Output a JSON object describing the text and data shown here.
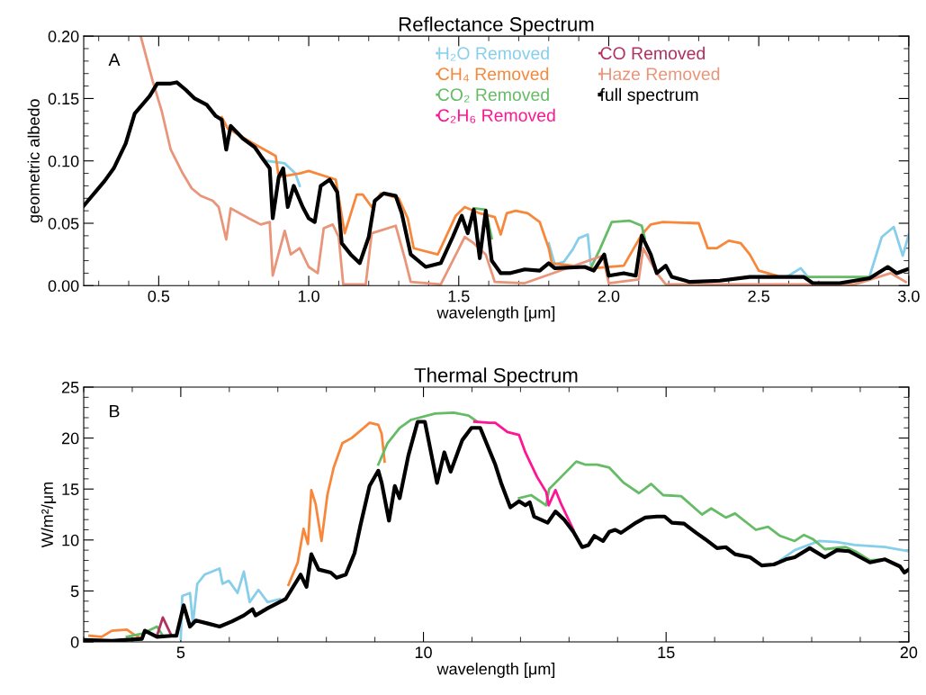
{
  "chart_data": [
    {
      "type": "line",
      "title": "Reflectance Spectrum",
      "xlabel": "wavelength [μm]",
      "ylabel": "geometric albedo",
      "annotations": [
        "A"
      ],
      "xlim": [
        0.25,
        3.0
      ],
      "ylim": [
        0,
        0.2
      ],
      "xticks": [
        {
          "value": 0.5,
          "label": "0.5"
        },
        {
          "value": 1.0,
          "label": "1.0"
        },
        {
          "value": 1.5,
          "label": "1.5"
        },
        {
          "value": 2.0,
          "label": "2.0"
        },
        {
          "value": 2.5,
          "label": "2.5"
        },
        {
          "value": 3.0,
          "label": "3.0"
        }
      ],
      "yticks": [
        {
          "value": 0,
          "label": "0.00"
        },
        {
          "value": 0.05,
          "label": "0.05"
        },
        {
          "value": 0.1,
          "label": "0.10"
        },
        {
          "value": 0.15,
          "label": "0.15"
        },
        {
          "value": 0.2,
          "label": "0.20"
        }
      ],
      "legend": "top",
      "grid": false,
      "series": [
        {
          "name": "H₂O Removed",
          "color": "#87ceeb",
          "x": [
            0.86,
            0.92,
            0.955,
            0.97,
            null,
            1.8,
            1.82,
            1.85,
            1.88,
            1.9,
            1.93,
            1.94,
            null,
            2.6,
            2.64,
            2.66,
            null,
            2.87,
            2.91,
            2.95,
            2.98,
            3.0
          ],
          "values": [
            0.1,
            0.098,
            0.09,
            0.08,
            null,
            0.034,
            0.017,
            0.019,
            0.029,
            0.038,
            0.041,
            0.017,
            null,
            0.008,
            0.014,
            0.008,
            null,
            0.008,
            0.039,
            0.047,
            0.024,
            0.041
          ]
        },
        {
          "name": "CH₄ Removed",
          "color": "#f7873a",
          "x": [
            0.71,
            0.73,
            0.8,
            0.89,
            0.9,
            0.97,
            1.0,
            1.09,
            1.12,
            1.16,
            1.18,
            1.21,
            1.24,
            1.3,
            1.33,
            1.35,
            1.43,
            1.44,
            1.49,
            1.52,
            1.57,
            1.62,
            1.64,
            1.66,
            1.69,
            1.73,
            1.77,
            1.8,
            1.81,
            1.92,
            1.95,
            2.05,
            2.11,
            2.14,
            2.18,
            2.3,
            2.33,
            2.36,
            2.4,
            2.44,
            2.47,
            2.5,
            2.56
          ],
          "values": [
            0.135,
            0.126,
            0.116,
            0.104,
            0.087,
            0.09,
            0.092,
            0.085,
            0.042,
            0.073,
            0.073,
            0.063,
            0.074,
            0.07,
            0.054,
            0.03,
            0.025,
            0.03,
            0.056,
            0.063,
            0.058,
            0.055,
            0.041,
            0.058,
            0.06,
            0.058,
            0.051,
            0.03,
            0.018,
            0.015,
            0.014,
            0.016,
            0.041,
            0.049,
            0.051,
            0.05,
            0.03,
            0.03,
            0.036,
            0.034,
            0.025,
            0.012,
            0.008
          ]
        },
        {
          "name": "CO₂ Removed",
          "color": "#66bb66",
          "x": [
            1.55,
            1.59,
            1.61,
            null,
            1.94,
            1.97,
            2.01,
            2.07,
            2.11,
            2.12,
            null,
            2.66,
            2.87
          ],
          "values": [
            0.062,
            0.061,
            0.038,
            null,
            0.014,
            0.029,
            0.051,
            0.052,
            0.048,
            0.038,
            null,
            0.007,
            0.007
          ]
        },
        {
          "name": "Haze Removed",
          "color": "#e8957a",
          "x": [
            0.44,
            0.48,
            0.51,
            0.54,
            0.58,
            0.61,
            0.64,
            0.68,
            0.7,
            0.725,
            0.74,
            0.8,
            0.84,
            0.87,
            0.88,
            0.92,
            0.94,
            0.97,
            1.0,
            1.03,
            1.05,
            1.08,
            1.1,
            1.115,
            1.19,
            1.21,
            1.29,
            1.32,
            1.34,
            1.44,
            1.48,
            1.52,
            1.55,
            1.59,
            1.62,
            1.72,
            1.98,
            2.0,
            2.1,
            2.115,
            2.16,
            2.19,
            2.82,
            2.94,
            2.99
          ],
          "values": [
            0.2,
            0.164,
            0.14,
            0.109,
            0.09,
            0.078,
            0.072,
            0.068,
            0.063,
            0.037,
            0.062,
            0.054,
            0.049,
            0.051,
            0.008,
            0.044,
            0.025,
            0.03,
            0.015,
            0.01,
            0.046,
            0.049,
            0.039,
            0.001,
            0.001,
            0.042,
            0.048,
            0.022,
            0.003,
            0.001,
            0.02,
            0.039,
            0.034,
            0.025,
            0.003,
            0.002,
            0.024,
            0.002,
            0.005,
            0.03,
            0.01,
            0.001,
            0.001,
            0.01,
            0.003
          ]
        },
        {
          "name": "full spectrum",
          "color": "#000000",
          "x": [
            0.25,
            0.32,
            0.35,
            0.39,
            0.42,
            0.47,
            0.495,
            0.54,
            0.56,
            0.59,
            0.62,
            0.66,
            0.69,
            0.71,
            0.725,
            0.74,
            0.78,
            0.82,
            0.84,
            0.87,
            0.88,
            0.9,
            0.915,
            0.93,
            0.95,
            0.98,
            1.0,
            1.02,
            1.04,
            1.07,
            1.095,
            1.11,
            1.14,
            1.17,
            1.2,
            1.22,
            1.25,
            1.29,
            1.31,
            1.34,
            1.39,
            1.44,
            1.48,
            1.51,
            1.53,
            1.55,
            1.57,
            1.59,
            1.61,
            1.64,
            1.67,
            1.72,
            1.77,
            1.8,
            1.82,
            1.92,
            1.95,
            1.985,
            2.0,
            2.05,
            2.09,
            2.11,
            2.14,
            2.16,
            2.19,
            2.21,
            2.27,
            2.37,
            2.47,
            2.57,
            2.65,
            2.68,
            2.77,
            2.87,
            2.93,
            2.96,
            2.995
          ],
          "values": [
            0.064,
            0.084,
            0.094,
            0.114,
            0.138,
            0.152,
            0.162,
            0.162,
            0.163,
            0.157,
            0.15,
            0.145,
            0.136,
            0.133,
            0.109,
            0.128,
            0.118,
            0.111,
            0.104,
            0.094,
            0.054,
            0.087,
            0.094,
            0.063,
            0.08,
            0.063,
            0.054,
            0.051,
            0.08,
            0.085,
            0.075,
            0.034,
            0.025,
            0.018,
            0.039,
            0.068,
            0.074,
            0.072,
            0.058,
            0.025,
            0.015,
            0.018,
            0.039,
            0.056,
            0.042,
            0.061,
            0.022,
            0.06,
            0.02,
            0.01,
            0.01,
            0.013,
            0.012,
            0.018,
            0.014,
            0.015,
            0.012,
            0.025,
            0.008,
            0.01,
            0.008,
            0.04,
            0.025,
            0.01,
            0.016,
            0.007,
            0.003,
            0.004,
            0.007,
            0.007,
            0.007,
            0.002,
            0.002,
            0.006,
            0.015,
            0.01,
            0.013
          ]
        }
      ]
    },
    {
      "type": "line",
      "title": "Thermal Spectrum",
      "xlabel": "wavelength [μm]",
      "ylabel": "W/m²/μm",
      "annotations": [
        "B"
      ],
      "xlim": [
        3,
        20
      ],
      "ylim": [
        0,
        25
      ],
      "xticks": [
        5,
        10,
        15,
        20
      ],
      "yticks": [
        0,
        5,
        10,
        15,
        20,
        25
      ],
      "legend": "top",
      "grid": false,
      "series": [
        {
          "color": "#87ceeb",
          "x": [
            5.0,
            5.03,
            5.19,
            5.25,
            5.34,
            5.49,
            5.8,
            5.86,
            5.99,
            6.17,
            6.3,
            6.42,
            6.6,
            6.79,
            7.04,
            null,
            17.35,
            17.65,
            18.15,
            18.52,
            18.89,
            19.51,
            20.0
          ],
          "values": [
            0.3,
            4.5,
            4.8,
            1.8,
            5.7,
            6.6,
            7.2,
            5.7,
            6.0,
            4.8,
            6.9,
            3.9,
            5.1,
            3.9,
            4.2,
            null,
            8.0,
            9.0,
            9.9,
            9.8,
            9.5,
            9.3,
            8.9
          ]
        },
        {
          "color": "#f7873a",
          "x": [
            3.12,
            3.37,
            3.58,
            3.89,
            4.01,
            4.2,
            null,
            7.22,
            7.41,
            7.53,
            7.62,
            7.69,
            7.78,
            7.9,
            8.02,
            8.15,
            8.33,
            8.52,
            8.77,
            8.89,
            9.07,
            9.14,
            9.2
          ],
          "values": [
            0.6,
            0.5,
            1.1,
            1.2,
            0.8,
            0.3,
            null,
            5.6,
            7.8,
            11.1,
            9.6,
            14.9,
            13.5,
            9.9,
            14.4,
            17.1,
            19.5,
            20.0,
            21.0,
            21.5,
            21.3,
            20.4,
            17.7
          ]
        },
        {
          "color": "#66bb66",
          "x": [
            3.89,
            4.2,
            4.51,
            4.63,
            null,
            9.07,
            9.26,
            9.51,
            9.75,
            10.24,
            10.62,
            10.93,
            11.11,
            null,
            11.97,
            12.22,
            12.53,
            12.59,
            12.84,
            13.15,
            13.33,
            13.58,
            13.83,
            14.13,
            14.44,
            14.69,
            14.94,
            15.31,
            15.74,
            15.93,
            16.23,
            16.42,
            16.85,
            17.1,
            17.35,
            17.65,
            17.84,
            18.02,
            18.27,
            18.7,
            18.89,
            19.2,
            19.51
          ],
          "values": [
            0.5,
            0.8,
            1.5,
            0.6,
            null,
            17.4,
            19.5,
            21.0,
            21.8,
            22.4,
            22.5,
            22.2,
            21.6,
            null,
            14.1,
            14.4,
            13.4,
            15.0,
            16.2,
            17.7,
            17.4,
            17.4,
            17.1,
            15.6,
            14.6,
            15.5,
            14.4,
            14.3,
            12.5,
            13.1,
            12.2,
            12.6,
            11.0,
            11.3,
            10.4,
            9.9,
            10.5,
            10.1,
            9.1,
            9.3,
            8.9,
            8.0,
            8.1
          ]
        },
        {
          "name": "C₂H₆ Removed",
          "color": "#ff1493",
          "x": [
            11.05,
            11.36,
            11.48,
            11.73,
            11.97,
            12.1,
            12.34,
            12.53,
            12.58,
            12.72,
            12.84,
            13.09
          ],
          "values": [
            21.6,
            21.5,
            21.5,
            20.6,
            20.3,
            18.6,
            16.2,
            14.7,
            13.4,
            14.9,
            13.5,
            11.0
          ]
        },
        {
          "name": "CO Removed",
          "color": "#b03060",
          "x": [
            4.51,
            4.63,
            4.72,
            4.81
          ],
          "values": [
            0.6,
            2.4,
            1.5,
            0.6
          ]
        },
        {
          "color": "#000000",
          "x": [
            3.0,
            3.58,
            4.2,
            4.26,
            4.51,
            4.81,
            4.91,
            5.06,
            5.19,
            5.31,
            5.56,
            5.8,
            6.05,
            6.3,
            6.48,
            6.54,
            6.79,
            7.16,
            7.47,
            7.59,
            7.69,
            7.84,
            8.09,
            8.21,
            8.4,
            8.58,
            8.7,
            8.89,
            9.07,
            9.14,
            9.29,
            9.41,
            9.51,
            9.69,
            9.88,
            10.03,
            10.28,
            10.43,
            10.56,
            10.8,
            10.99,
            11.17,
            11.48,
            11.6,
            11.79,
            11.97,
            12.1,
            12.19,
            12.28,
            12.56,
            12.72,
            12.9,
            13.09,
            13.27,
            13.4,
            13.52,
            13.7,
            13.83,
            13.95,
            14.07,
            14.38,
            14.57,
            14.81,
            14.97,
            15.12,
            15.37,
            15.62,
            15.8,
            16.05,
            16.23,
            16.42,
            16.73,
            16.97,
            17.22,
            17.47,
            17.65,
            17.96,
            18.27,
            18.52,
            18.77,
            19.2,
            19.51,
            19.82,
            19.91,
            20.0
          ],
          "values": [
            0.2,
            0.1,
            0.3,
            1.1,
            0.5,
            0.6,
            0.6,
            3.6,
            1.5,
            2.1,
            1.8,
            1.5,
            2.0,
            2.6,
            3.2,
            2.6,
            3.3,
            4.2,
            6.6,
            5.4,
            8.6,
            7.1,
            6.8,
            6.3,
            6.6,
            8.7,
            11.4,
            15.3,
            16.8,
            15.6,
            11.9,
            15.3,
            14.1,
            18.3,
            21.6,
            21.6,
            15.6,
            18.6,
            16.7,
            19.8,
            21.0,
            21.0,
            17.4,
            15.6,
            13.2,
            13.8,
            13.4,
            13.7,
            12.3,
            11.7,
            12.8,
            12.0,
            10.8,
            9.3,
            9.5,
            10.4,
            9.9,
            10.8,
            11.0,
            10.7,
            11.7,
            12.2,
            12.3,
            12.3,
            11.7,
            11.6,
            10.7,
            10.1,
            9.2,
            9.3,
            8.6,
            8.3,
            7.5,
            7.6,
            8.1,
            8.3,
            9.2,
            8.3,
            9.0,
            8.9,
            7.8,
            8.1,
            7.4,
            6.8,
            7.1
          ]
        }
      ]
    }
  ]
}
